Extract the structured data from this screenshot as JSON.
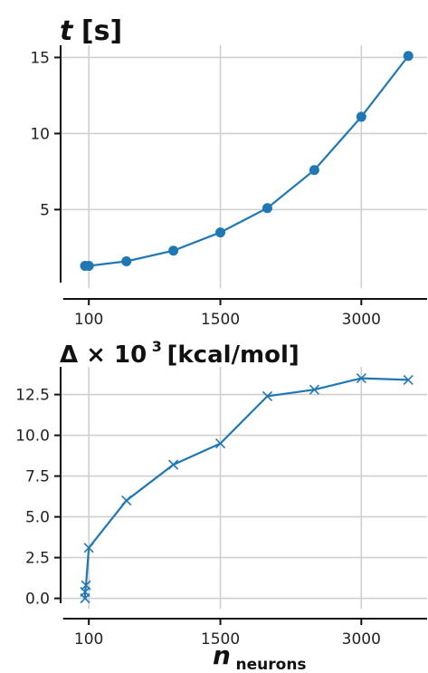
{
  "chart_data": [
    {
      "type": "line",
      "title": "t [s]",
      "title_parts": {
        "symbol": "t",
        "rest": "[s]"
      },
      "x_tick_labels": [
        "100",
        "1500",
        "3000"
      ],
      "x_tick_values": [
        100,
        1500,
        3000
      ],
      "y_tick_labels": [
        "5",
        "10",
        "15"
      ],
      "y_tick_values": [
        5,
        10,
        15
      ],
      "xlim": [
        -200,
        3700
      ],
      "ylim": [
        0.2,
        15.8
      ],
      "grid": true,
      "marker": "circle",
      "color": "#1f77b4",
      "series": [
        {
          "x": [
            60,
            100,
            500,
            1000,
            1500,
            2000,
            2500,
            3000,
            3500
          ],
          "y": [
            1.3,
            1.3,
            1.6,
            2.3,
            3.5,
            5.1,
            7.6,
            11.1,
            15.1
          ]
        }
      ]
    },
    {
      "type": "line",
      "title": "Δ × 10³ [kcal/mol]",
      "title_parts": {
        "main": "Δ × 10",
        "sup": "3",
        "rest": " [kcal/mol]"
      },
      "xlabel": "n_neurons",
      "xlabel_parts": {
        "main": "n",
        "sub": "neurons"
      },
      "x_tick_labels": [
        "100",
        "1500",
        "3000"
      ],
      "x_tick_values": [
        100,
        1500,
        3000
      ],
      "y_tick_labels": [
        "0.0",
        "2.5",
        "5.0",
        "7.5",
        "10.0",
        "12.5"
      ],
      "y_tick_values": [
        0,
        2.5,
        5,
        7.5,
        10,
        12.5
      ],
      "xlim": [
        -200,
        3700
      ],
      "ylim": [
        -0.3,
        14.2
      ],
      "grid": true,
      "marker": "x",
      "color": "#1f77b4",
      "series": [
        {
          "x": [
            60,
            60,
            70,
            100,
            500,
            1000,
            1500,
            2000,
            2500,
            3000,
            3500
          ],
          "y": [
            0.0,
            0.4,
            0.8,
            3.1,
            6.0,
            8.2,
            9.5,
            12.4,
            12.8,
            13.5,
            13.4
          ]
        }
      ]
    }
  ]
}
